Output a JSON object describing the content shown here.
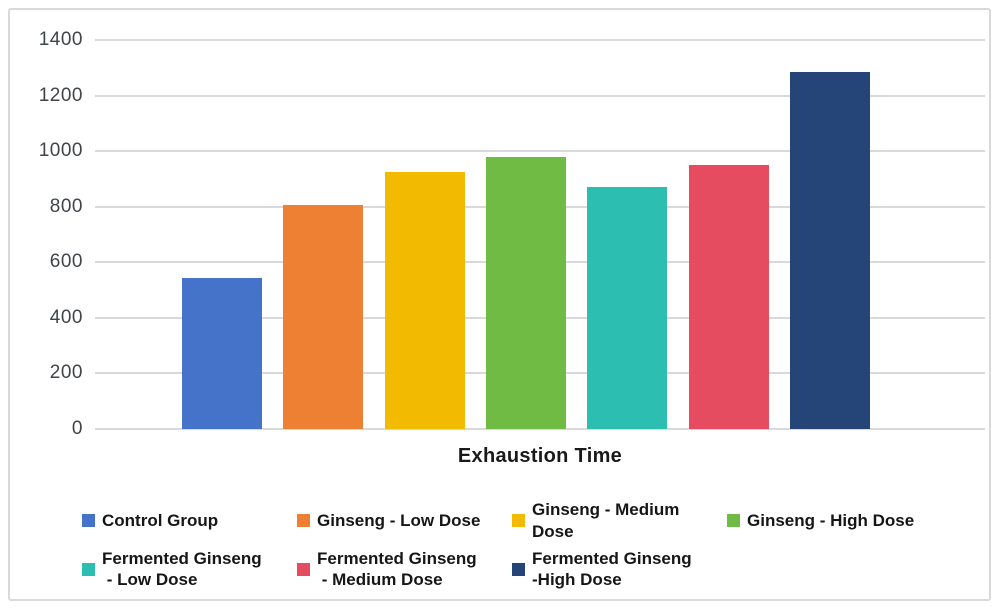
{
  "chart_data": {
    "type": "bar",
    "title": "",
    "xlabel": "Exhaustion Time",
    "ylabel": "",
    "ylim": [
      0,
      1400
    ],
    "yticks": [
      1400,
      1200,
      1000,
      800,
      600,
      400,
      200,
      0
    ],
    "grid": "horizontal",
    "legend_position": "bottom",
    "series": [
      {
        "name": "Control Group",
        "value": 545,
        "color": "#4573c9",
        "legend_lines": [
          "Control Group"
        ]
      },
      {
        "name": "Ginseng - Low Dose",
        "value": 805,
        "color": "#ee8033",
        "legend_lines": [
          "Ginseng - Low Dose"
        ]
      },
      {
        "name": "Ginseng - Medium Dose",
        "value": 925,
        "color": "#f2ba00",
        "legend_lines": [
          "Ginseng - Medium",
          "Dose"
        ]
      },
      {
        "name": "Ginseng - High Dose",
        "value": 980,
        "color": "#70bb44",
        "legend_lines": [
          "Ginseng - High Dose"
        ]
      },
      {
        "name": "Fermented Ginseng - Low Dose",
        "value": 870,
        "color": "#2cbeb1",
        "legend_lines": [
          "Fermented Ginseng",
          " - Low Dose"
        ]
      },
      {
        "name": "Fermented Ginseng - Medium Dose",
        "value": 950,
        "color": "#e54c5f",
        "legend_lines": [
          "Fermented Ginseng",
          " - Medium Dose"
        ]
      },
      {
        "name": "Fermented Ginseng - High Dose",
        "value": 1285,
        "color": "#254579",
        "legend_lines": [
          "Fermented Ginseng",
          "-High Dose"
        ]
      }
    ]
  },
  "style_colors": {
    "frame_border": "#d9d9d9",
    "gridline": "#d9d9d9",
    "tick_text": "#404449",
    "label_text": "#1a1a1a",
    "legend_text": "#161616",
    "background": "#ffffff"
  }
}
